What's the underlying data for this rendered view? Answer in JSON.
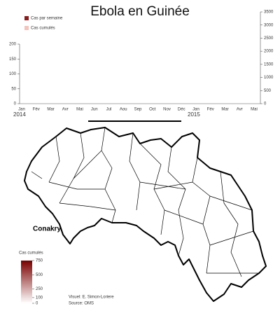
{
  "chart_data": {
    "type": "bar",
    "title": "Ebola en Guinée",
    "series": [
      {
        "name": "Cas par semaine",
        "color": "#8b1c1c",
        "axis": "y"
      },
      {
        "name": "Cas cumulés",
        "color": "#f2c4bb",
        "axis": "y2"
      }
    ],
    "categories": [
      "Jan",
      "Fév",
      "Mar",
      "Avr",
      "Mai",
      "Jun",
      "Jul",
      "Aou",
      "Sep",
      "Oct",
      "Nov",
      "Déc",
      "Jan",
      "Fév",
      "Mar",
      "Avr",
      "Mai"
    ],
    "years": [
      "2014",
      "2015"
    ],
    "ylim": [
      0,
      200
    ],
    "yticks": [
      0,
      50,
      100,
      150,
      200
    ],
    "y2lim": [
      0,
      3500
    ],
    "y2ticks": [
      0,
      500,
      1000,
      1500,
      2000,
      2500,
      3000,
      3500
    ]
  },
  "map": {
    "labels": [
      "Conakry"
    ],
    "colorbar": {
      "title": "Cas cumulés",
      "lim": [
        0,
        750
      ],
      "ticks": [
        0,
        100,
        250,
        500,
        750
      ],
      "colors": [
        "#ffffff",
        "#7a0000"
      ]
    }
  },
  "credits": [
    "Visuel: E. Simon-Loriere",
    "Source: OMS"
  ]
}
